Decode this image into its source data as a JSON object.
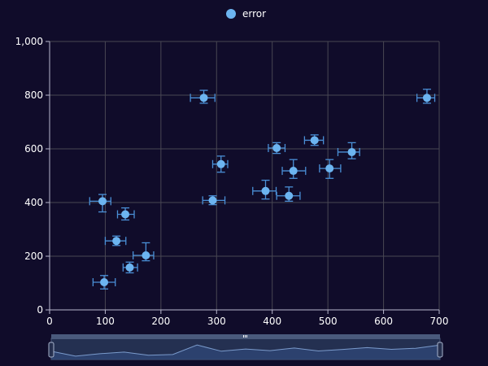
{
  "legend": {
    "label": "error",
    "color": "#6cb4f0"
  },
  "colors": {
    "background": "#100c2a",
    "grid": "#484753",
    "axis": "#b9b8ce",
    "point": "#6cb4f0",
    "errorbar": "#4a8fd6",
    "zoom_track": "#243051",
    "zoom_fill": "#2e4676"
  },
  "chart_data": {
    "type": "scatter",
    "xlim": [
      0,
      700
    ],
    "ylim": [
      0,
      1000
    ],
    "x_ticks": [
      "0",
      "100",
      "200",
      "300",
      "400",
      "500",
      "600",
      "700"
    ],
    "y_ticks": [
      "0",
      "200",
      "400",
      "600",
      "800",
      "1,000"
    ],
    "x_tick_values": [
      0,
      100,
      200,
      300,
      400,
      500,
      600,
      700
    ],
    "y_tick_values": [
      0,
      200,
      400,
      600,
      800,
      1000
    ],
    "grid": true,
    "legend_position": "top-center",
    "series": [
      {
        "name": "error",
        "points": [
          {
            "x": 98,
            "y": 103,
            "x_low": 78,
            "x_high": 118,
            "y_low": 78,
            "y_high": 128
          },
          {
            "x": 144,
            "y": 158,
            "x_low": 132,
            "x_high": 158,
            "y_low": 138,
            "y_high": 178
          },
          {
            "x": 173,
            "y": 203,
            "x_low": 150,
            "x_high": 187,
            "y_low": 183,
            "y_high": 250
          },
          {
            "x": 120,
            "y": 257,
            "x_low": 100,
            "x_high": 137,
            "y_low": 240,
            "y_high": 275
          },
          {
            "x": 136,
            "y": 356,
            "x_low": 122,
            "x_high": 152,
            "y_low": 335,
            "y_high": 380
          },
          {
            "x": 95,
            "y": 405,
            "x_low": 72,
            "x_high": 110,
            "y_low": 365,
            "y_high": 430
          },
          {
            "x": 293,
            "y": 408,
            "x_low": 275,
            "x_high": 315,
            "y_low": 392,
            "y_high": 425
          },
          {
            "x": 308,
            "y": 543,
            "x_low": 293,
            "x_high": 320,
            "y_low": 513,
            "y_high": 573
          },
          {
            "x": 277,
            "y": 790,
            "x_low": 253,
            "x_high": 297,
            "y_low": 770,
            "y_high": 818
          },
          {
            "x": 388,
            "y": 443,
            "x_low": 365,
            "x_high": 407,
            "y_low": 413,
            "y_high": 483
          },
          {
            "x": 430,
            "y": 425,
            "x_low": 408,
            "x_high": 450,
            "y_low": 405,
            "y_high": 458
          },
          {
            "x": 438,
            "y": 518,
            "x_low": 418,
            "x_high": 460,
            "y_low": 490,
            "y_high": 560
          },
          {
            "x": 408,
            "y": 603,
            "x_low": 393,
            "x_high": 423,
            "y_low": 583,
            "y_high": 623
          },
          {
            "x": 476,
            "y": 632,
            "x_low": 458,
            "x_high": 492,
            "y_low": 613,
            "y_high": 652
          },
          {
            "x": 503,
            "y": 527,
            "x_low": 485,
            "x_high": 523,
            "y_low": 490,
            "y_high": 560
          },
          {
            "x": 543,
            "y": 588,
            "x_low": 518,
            "x_high": 557,
            "y_low": 563,
            "y_high": 623
          },
          {
            "x": 678,
            "y": 790,
            "x_low": 660,
            "x_high": 692,
            "y_low": 770,
            "y_high": 822
          }
        ]
      }
    ]
  }
}
